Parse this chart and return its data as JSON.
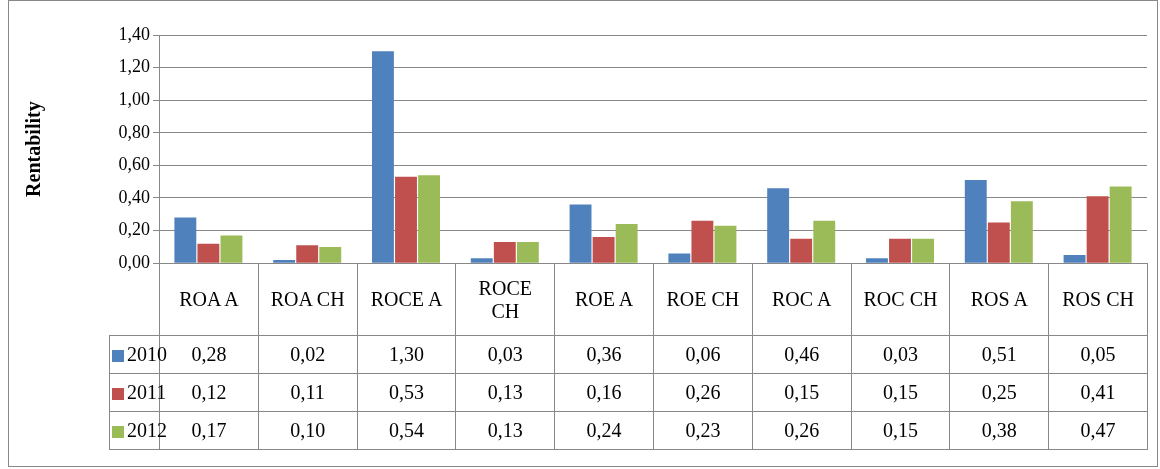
{
  "chart_data": {
    "type": "bar",
    "ylabel": "Rentability",
    "categories": [
      "ROA A",
      "ROA CH",
      "ROCE A",
      "ROCE CH",
      "ROE A",
      "ROE CH",
      "ROC A",
      "ROC CH",
      "ROS A",
      "ROS CH"
    ],
    "series": [
      {
        "name": "2010",
        "color": "#4f81bd",
        "values": [
          0.28,
          0.02,
          1.3,
          0.03,
          0.36,
          0.06,
          0.46,
          0.03,
          0.51,
          0.05
        ],
        "value_labels": [
          "0,28",
          "0,02",
          "1,30",
          "0,03",
          "0,36",
          "0,06",
          "0,46",
          "0,03",
          "0,51",
          "0,05"
        ]
      },
      {
        "name": "2011",
        "color": "#c0504d",
        "values": [
          0.12,
          0.11,
          0.53,
          0.13,
          0.16,
          0.26,
          0.15,
          0.15,
          0.25,
          0.41
        ],
        "value_labels": [
          "0,12",
          "0,11",
          "0,53",
          "0,13",
          "0,16",
          "0,26",
          "0,15",
          "0,15",
          "0,25",
          "0,41"
        ]
      },
      {
        "name": "2012",
        "color": "#9bbb59",
        "values": [
          0.17,
          0.1,
          0.54,
          0.13,
          0.24,
          0.23,
          0.26,
          0.15,
          0.38,
          0.47
        ],
        "value_labels": [
          "0,17",
          "0,10",
          "0,54",
          "0,13",
          "0,24",
          "0,23",
          "0,26",
          "0,15",
          "0,38",
          "0,47"
        ]
      }
    ],
    "ylim": [
      0,
      1.4
    ],
    "yticks": [
      {
        "value": 0,
        "label": "0,00"
      },
      {
        "value": 0.2,
        "label": "0,20"
      },
      {
        "value": 0.4,
        "label": "0,40"
      },
      {
        "value": 0.6,
        "label": "0,60"
      },
      {
        "value": 0.8,
        "label": "0,80"
      },
      {
        "value": 1.0,
        "label": "1,00"
      },
      {
        "value": 1.2,
        "label": "1,20"
      },
      {
        "value": 1.4,
        "label": "1,40"
      }
    ],
    "grid": "y",
    "legend": "bottom"
  }
}
